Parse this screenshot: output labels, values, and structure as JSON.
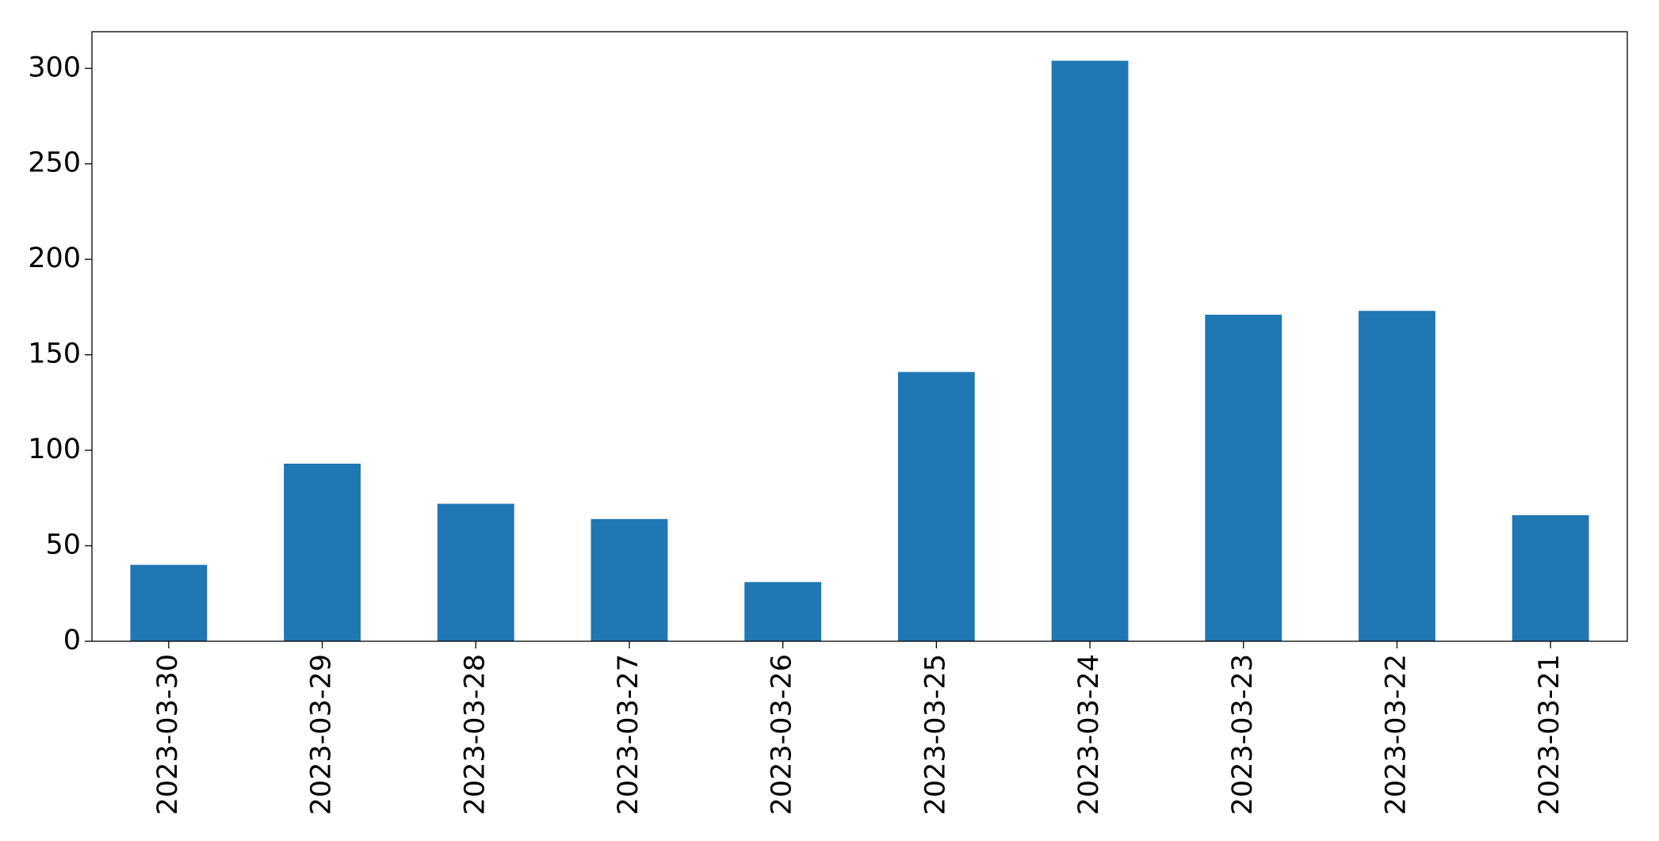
{
  "chart_data": {
    "type": "bar",
    "categories": [
      "2023-03-30",
      "2023-03-29",
      "2023-03-28",
      "2023-03-27",
      "2023-03-26",
      "2023-03-25",
      "2023-03-24",
      "2023-03-23",
      "2023-03-22",
      "2023-03-21"
    ],
    "values": [
      40,
      93,
      72,
      64,
      31,
      141,
      304,
      171,
      173,
      66
    ],
    "color": "#1f77b4",
    "ylim": [
      0,
      319.2
    ],
    "yticks": [
      0,
      50,
      100,
      150,
      200,
      250,
      300
    ],
    "grid": false
  }
}
